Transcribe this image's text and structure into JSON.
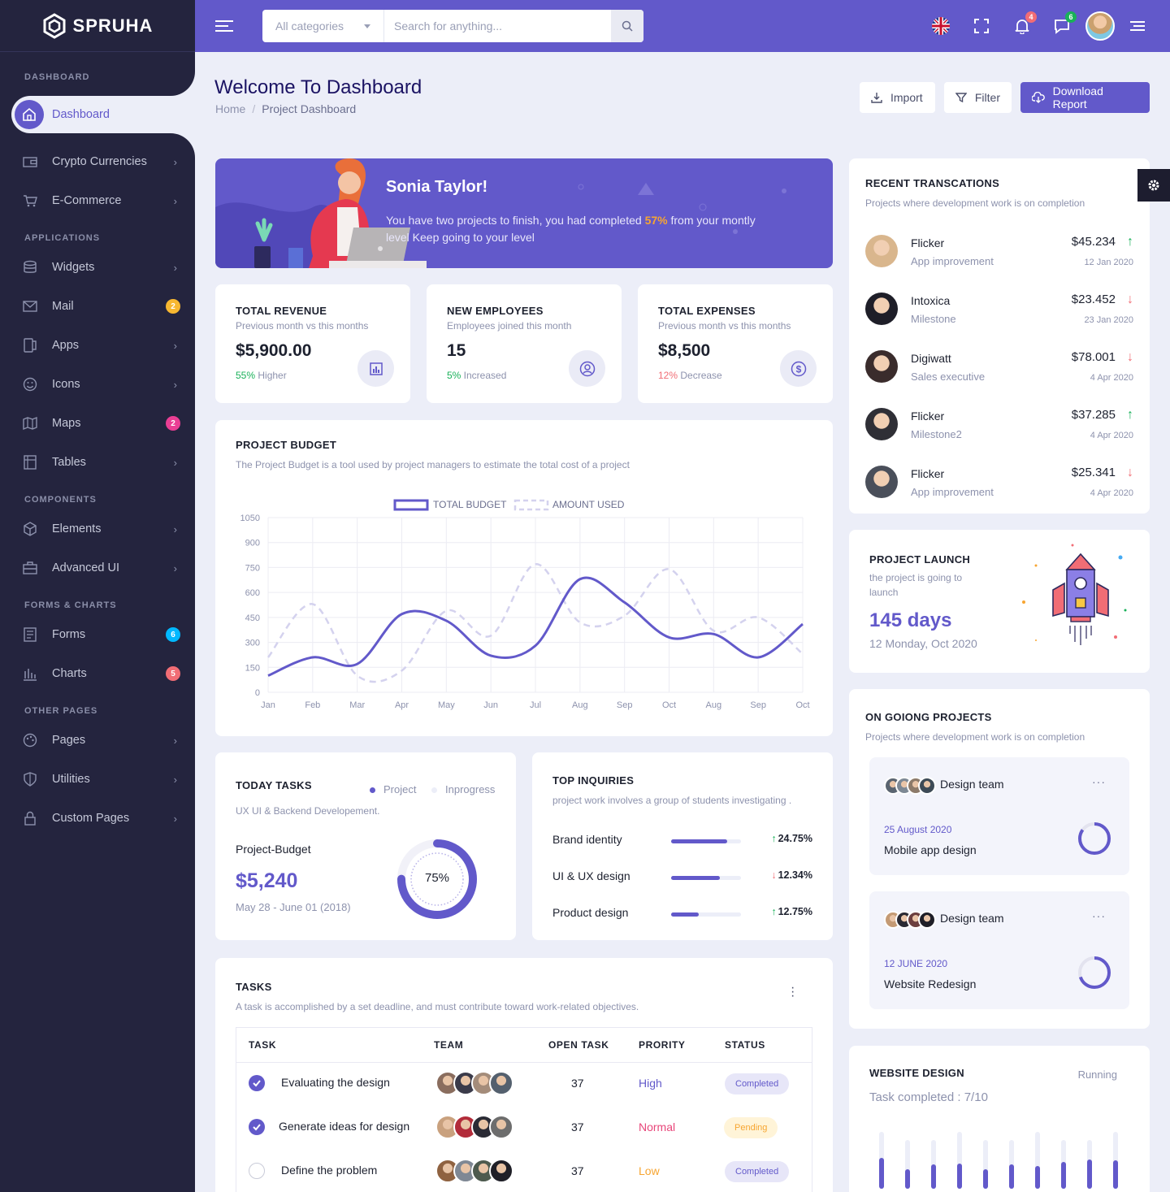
{
  "brand": {
    "name": "SPRUHA"
  },
  "sidebar": {
    "sections": [
      "DASHBOARD",
      "APPLICATIONS",
      "COMPONENTS",
      "FORMS & CHARTS",
      "OTHER PAGES"
    ],
    "active": "Dashboard",
    "items": [
      {
        "label": "Crypto Currencies",
        "icon": "wallet-icon",
        "badge": ""
      },
      {
        "label": "E-Commerce",
        "icon": "cart-icon",
        "badge": ""
      },
      {
        "label": "Widgets",
        "icon": "database-icon",
        "badge": ""
      },
      {
        "label": "Mail",
        "icon": "mail-icon",
        "badge": "2"
      },
      {
        "label": "Apps",
        "icon": "apps-icon",
        "badge": ""
      },
      {
        "label": "Icons",
        "icon": "smile-icon",
        "badge": ""
      },
      {
        "label": "Maps",
        "icon": "map-icon",
        "badge": "2"
      },
      {
        "label": "Tables",
        "icon": "table-icon",
        "badge": ""
      },
      {
        "label": "Elements",
        "icon": "box-icon",
        "badge": ""
      },
      {
        "label": "Advanced UI",
        "icon": "briefcase-icon",
        "badge": ""
      },
      {
        "label": "Forms",
        "icon": "form-icon",
        "badge": "6"
      },
      {
        "label": "Charts",
        "icon": "chart-icon",
        "badge": "5"
      },
      {
        "label": "Pages",
        "icon": "palette-icon",
        "badge": ""
      },
      {
        "label": "Utilities",
        "icon": "shield-icon",
        "badge": ""
      },
      {
        "label": "Custom Pages",
        "icon": "lock-icon",
        "badge": ""
      }
    ]
  },
  "header": {
    "category": "All categories",
    "search_placeholder": "Search for anything...",
    "notifications_count": "4",
    "messages_count": "6"
  },
  "page": {
    "title": "Welcome To Dashboard",
    "breadcrumb_home": "Home",
    "breadcrumb_sep": "/",
    "breadcrumb_current": "Project Dashboard",
    "import_label": "Import",
    "filter_label": "Filter",
    "download_label": "Download Report"
  },
  "banner": {
    "name": "Sonia Taylor!",
    "line1_pre": "You have two projects to finish, you had completed ",
    "percent": "57%",
    "line1_post": " from your montly",
    "line2": "level Keep going to your level"
  },
  "stats": [
    {
      "title": "TOTAL REVENUE",
      "sub": "Previous month vs this months",
      "value": "$5,900.00",
      "pct": "55%",
      "note": " Higher",
      "pct_color": "#19b159"
    },
    {
      "title": "NEW EMPLOYEES",
      "sub": "Employees joined this month",
      "value": "15",
      "pct": "5%",
      "note": " Increased",
      "pct_color": "#19b159"
    },
    {
      "title": "TOTAL EXPENSES",
      "sub": "Previous month vs this months",
      "value": "$8,500",
      "pct": "12%",
      "note": " Decrease",
      "pct_color": "#f16d75"
    }
  ],
  "budget": {
    "title": "PROJECT BUDGET",
    "sub": "The Project Budget is a tool used by project managers to estimate the total cost of a project"
  },
  "chart_data": {
    "type": "line",
    "categories": [
      "Jan",
      "Feb",
      "Mar",
      "Apr",
      "May",
      "Jun",
      "Jul",
      "Aug",
      "Sep",
      "Oct",
      "Aug",
      "Sep",
      "Oct"
    ],
    "series": [
      {
        "name": "TOTAL BUDGET",
        "values": [
          100,
          210,
          170,
          470,
          430,
          220,
          280,
          680,
          540,
          330,
          350,
          210,
          410
        ],
        "color": "#6259ca",
        "style": "solid"
      },
      {
        "name": "AMOUNT USED",
        "values": [
          210,
          530,
          100,
          130,
          490,
          340,
          770,
          420,
          460,
          740,
          370,
          450,
          230
        ],
        "color": "#d4d2ee",
        "style": "dashed"
      }
    ],
    "ylim": [
      0,
      1050
    ],
    "yticks": [
      0,
      150,
      300,
      450,
      600,
      750,
      900,
      1050
    ],
    "grid": true,
    "legend": "top"
  },
  "today_tasks": {
    "title": "TODAY TASKS",
    "sub": "UX UI & Backend Developement.",
    "legend_project": "Project",
    "legend_inprogress": "Inprogress",
    "label": "Project-Budget",
    "value": "$5,240",
    "dates": "May 28 - June 01 (2018)",
    "progress": 0.75,
    "progress_label": "75%"
  },
  "inquiries": {
    "title": "TOP INQUIRIES",
    "sub": "project work involves a group of students investigating .",
    "rows": [
      {
        "label": "Brand identity",
        "value": 0.8,
        "arrow": "↑",
        "arrow_color": "#19b159",
        "pct": "24.75%"
      },
      {
        "label": "UI & UX design",
        "value": 0.7,
        "arrow": "↓",
        "arrow_color": "#f16d75",
        "pct": "12.34%"
      },
      {
        "label": "Product design",
        "value": 0.4,
        "arrow": "↑",
        "arrow_color": "#19b159",
        "pct": "12.75%"
      }
    ]
  },
  "tasks": {
    "title": "TASKS",
    "sub": "A task is accomplished by a set deadline, and must contribute toward work-related objectives.",
    "headers": [
      "TASK",
      "TEAM",
      "OPEN TASK",
      "PRORITY",
      "STATUS"
    ],
    "rows": [
      {
        "task": "Evaluating the design",
        "open": "37",
        "priority": "High",
        "priority_color": "#6259ca",
        "status": "Completed",
        "status_bg": "#e7e6f8",
        "status_color": "#6259ca",
        "checked": true
      },
      {
        "task": "Generate ideas for design",
        "open": "37",
        "priority": "Normal",
        "priority_color": "#e8467a",
        "status": "Pending",
        "status_bg": "#fff4d8",
        "status_color": "#f7a531",
        "checked": true
      },
      {
        "task": "Define the problem",
        "open": "37",
        "priority": "Low",
        "priority_color": "#f7a531",
        "status": "Completed",
        "status_bg": "#e7e6f8",
        "status_color": "#6259ca",
        "checked": false
      }
    ]
  },
  "transactions": {
    "title": "RECENT TRANSCATIONS",
    "sub": "Projects where development work is on completion",
    "rows": [
      {
        "name": "Flicker",
        "desc": "App improvement",
        "amount": "$45.234",
        "dir": "↑",
        "dir_color": "#19b159",
        "date": "12 Jan 2020"
      },
      {
        "name": "Intoxica",
        "desc": "Milestone",
        "amount": "$23.452",
        "dir": "↓",
        "dir_color": "#f16d75",
        "date": "23 Jan 2020"
      },
      {
        "name": "Digiwatt",
        "desc": "Sales executive",
        "amount": "$78.001",
        "dir": "↓",
        "dir_color": "#f16d75",
        "date": "4 Apr 2020"
      },
      {
        "name": "Flicker",
        "desc": "Milestone2",
        "amount": "$37.285",
        "dir": "↑",
        "dir_color": "#19b159",
        "date": "4 Apr 2020"
      },
      {
        "name": "Flicker",
        "desc": "App improvement",
        "amount": "$25.341",
        "dir": "↓",
        "dir_color": "#f16d75",
        "date": "4 Apr 2020"
      }
    ]
  },
  "launch": {
    "title": "PROJECT LAUNCH",
    "sub1": "the project is going to",
    "sub2": "launch",
    "days": "145 days",
    "date": "12 Monday, Oct 2020"
  },
  "ongoing": {
    "title": "ON GOIONG PROJECTS",
    "sub": "Projects where development work is on completion",
    "projects": [
      {
        "team": "Design team",
        "date": "25 August 2020",
        "name": "Mobile app design",
        "more": "···",
        "progress": 0.85
      },
      {
        "team": "Design team",
        "date": "12 JUNE 2020",
        "name": "Website Redesign",
        "more": "···",
        "progress": 0.7
      }
    ]
  },
  "website": {
    "title": "WEBSITE DESIGN",
    "status": "Running",
    "completed": "Task completed : 7/10",
    "bars": [
      0.55,
      0.4,
      0.5,
      0.45,
      0.4,
      0.5,
      0.4,
      0.55,
      0.6,
      0.5
    ]
  },
  "colors": {
    "primary": "#6259ca",
    "sidebar": "#24243e",
    "bg": "#eceef8"
  }
}
